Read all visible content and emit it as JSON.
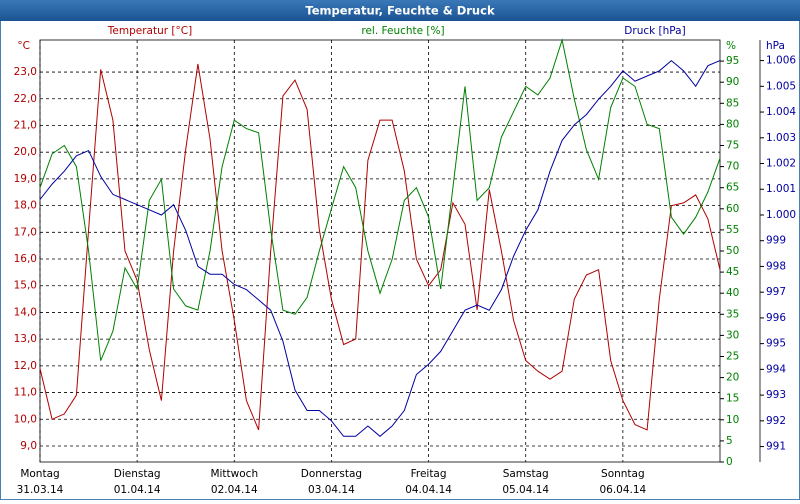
{
  "chart_data": {
    "type": "line",
    "title": "Temperatur, Feuchte & Druck",
    "x": [
      0,
      0.125,
      0.25,
      0.375,
      0.5,
      0.625,
      0.75,
      0.875,
      1,
      1.125,
      1.25,
      1.375,
      1.5,
      1.625,
      1.75,
      1.875,
      2,
      2.125,
      2.25,
      2.375,
      2.5,
      2.625,
      2.75,
      2.875,
      3,
      3.125,
      3.25,
      3.375,
      3.5,
      3.625,
      3.75,
      3.875,
      4,
      4.125,
      4.25,
      4.375,
      4.5,
      4.625,
      4.75,
      4.875,
      5,
      5.125,
      5.25,
      5.375,
      5.5,
      5.625,
      5.75,
      5.875,
      6,
      6.125,
      6.25,
      6.375,
      6.5,
      6.625,
      6.75,
      6.875,
      7
    ],
    "xlim": [
      0,
      7
    ],
    "xticks": [
      {
        "value": 0,
        "label": [
          "Montag",
          "31.03.14"
        ]
      },
      {
        "value": 1,
        "label": [
          "Dienstag",
          "01.04.14"
        ]
      },
      {
        "value": 2,
        "label": [
          "Mittwoch",
          "02.04.14"
        ]
      },
      {
        "value": 3,
        "label": [
          "Donnerstag",
          "03.04.14"
        ]
      },
      {
        "value": 4,
        "label": [
          "Freitag",
          "04.04.14"
        ]
      },
      {
        "value": 5,
        "label": [
          "Samstag",
          "05.04.14"
        ]
      },
      {
        "value": 6,
        "label": [
          "Sonntag",
          "06.04.14"
        ]
      }
    ],
    "grid": true,
    "series": [
      {
        "name": "Temperatur [°C]",
        "unit": "°C",
        "color": "#b00000",
        "axis": "y",
        "values": [
          11.9,
          10.0,
          10.2,
          10.9,
          17.1,
          23.1,
          21.2,
          16.3,
          15.2,
          12.6,
          10.7,
          16.3,
          20.1,
          23.3,
          20.5,
          16.3,
          13.7,
          10.7,
          9.6,
          16.3,
          22.1,
          22.7,
          21.6,
          17.1,
          14.5,
          12.8,
          13.0,
          19.7,
          21.2,
          21.2,
          19.3,
          16.0,
          15.0,
          15.6,
          18.1,
          17.3,
          14.1,
          18.6,
          16.3,
          13.7,
          12.2,
          11.8,
          11.5,
          11.8,
          14.5,
          15.4,
          15.6,
          12.2,
          10.7,
          9.8,
          9.6,
          14.5,
          18.0,
          18.1,
          18.4,
          17.5,
          15.6
        ]
      },
      {
        "name": "rel. Feuchte [%]",
        "unit": "%",
        "color": "#008000",
        "axis": "y2",
        "values": [
          65,
          73,
          75,
          70,
          50,
          24,
          31,
          46,
          41,
          62,
          67,
          41,
          37,
          36,
          50,
          70,
          81,
          79,
          78,
          55,
          36,
          35,
          39,
          50,
          60,
          70,
          65,
          50,
          40,
          48,
          62,
          65,
          58,
          41,
          65,
          89,
          62,
          65,
          77,
          83,
          89,
          87,
          91,
          100,
          86,
          74,
          67,
          84,
          91,
          89,
          80,
          79,
          58,
          54,
          58,
          64,
          72
        ]
      },
      {
        "name": "Druck [hPa]",
        "unit": "hPa",
        "color": "#0000a0",
        "axis": "y3",
        "values": [
          1000.6,
          1001.2,
          1001.7,
          1002.3,
          1002.5,
          1001.5,
          1000.8,
          1000.6,
          1000.4,
          1000.2,
          1000.0,
          1000.4,
          999.4,
          998.0,
          997.7,
          997.7,
          997.3,
          997.1,
          996.7,
          996.3,
          995.1,
          993.2,
          992.4,
          992.4,
          992.0,
          991.4,
          991.4,
          991.8,
          991.4,
          991.8,
          992.4,
          993.8,
          994.2,
          994.7,
          995.5,
          996.3,
          996.5,
          996.3,
          997.1,
          998.4,
          999.4,
          1000.2,
          1001.7,
          1002.9,
          1003.5,
          1003.9,
          1004.5,
          1005.0,
          1005.6,
          1005.2,
          1005.4,
          1005.6,
          1006.0,
          1005.6,
          1005.0,
          1005.8,
          1006.0
        ]
      }
    ],
    "ylim": [
      8.4,
      24.2
    ],
    "yticks": [
      {
        "value": 9,
        "label": "9,0"
      },
      {
        "value": 10,
        "label": "10,0"
      },
      {
        "value": 11,
        "label": "11,0"
      },
      {
        "value": 12,
        "label": "12,0"
      },
      {
        "value": 13,
        "label": "13,0"
      },
      {
        "value": 14,
        "label": "14,0"
      },
      {
        "value": 15,
        "label": "15,0"
      },
      {
        "value": 16,
        "label": "16,0"
      },
      {
        "value": 17,
        "label": "17,0"
      },
      {
        "value": 18,
        "label": "18,0"
      },
      {
        "value": 19,
        "label": "19,0"
      },
      {
        "value": 20,
        "label": "20,0"
      },
      {
        "value": 21,
        "label": "21,0"
      },
      {
        "value": 22,
        "label": "22,0"
      },
      {
        "value": 23,
        "label": "23,0"
      }
    ],
    "y2lim": [
      0,
      100
    ],
    "y2ticks": [
      0,
      5,
      10,
      15,
      20,
      25,
      30,
      35,
      40,
      45,
      50,
      55,
      60,
      65,
      70,
      75,
      80,
      85,
      90,
      95
    ],
    "y3lim": [
      990.4,
      1006.8
    ],
    "y3ticks": [
      991,
      992,
      993,
      994,
      995,
      996,
      997,
      998,
      999,
      {
        "value": 1000,
        "label": "1.000"
      },
      {
        "value": 1001,
        "label": "1.001"
      },
      {
        "value": 1002,
        "label": "1.002"
      },
      {
        "value": 1003,
        "label": "1.003"
      },
      {
        "value": 1004,
        "label": "1.004"
      },
      {
        "value": 1005,
        "label": "1.005"
      },
      {
        "value": 1006,
        "label": "1.006"
      }
    ]
  }
}
